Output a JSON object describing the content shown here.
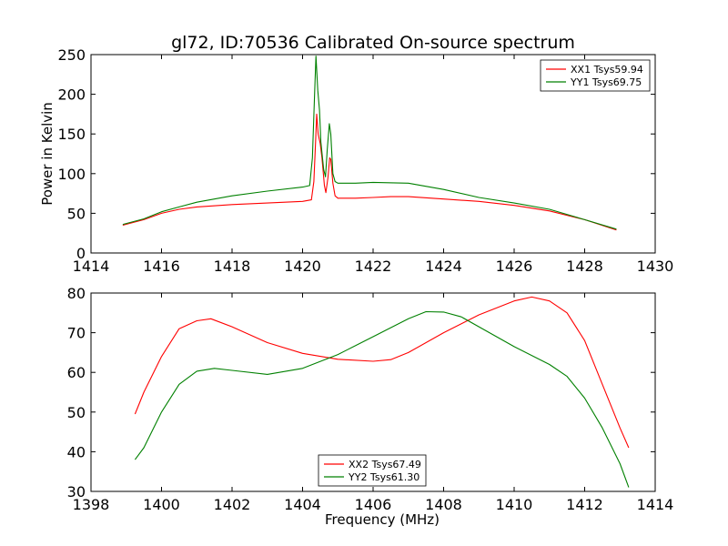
{
  "chart_data": [
    {
      "type": "line",
      "title": "gl72, ID:70536 Calibrated On-source spectrum",
      "xlabel": "",
      "ylabel": "Power in Kelvin",
      "xlim": [
        1414,
        1430
      ],
      "ylim": [
        0,
        250
      ],
      "xticks": [
        1414,
        1416,
        1418,
        1420,
        1422,
        1424,
        1426,
        1428,
        1430
      ],
      "yticks": [
        0,
        50,
        100,
        150,
        200,
        250
      ],
      "grid": false,
      "legend_position": "top-right",
      "series": [
        {
          "name": "XX1 Tsys59.94",
          "color": "#ff0000",
          "points": [
            [
              1414.9,
              35
            ],
            [
              1415.5,
              42
            ],
            [
              1416.0,
              50
            ],
            [
              1416.5,
              55
            ],
            [
              1417.0,
              58
            ],
            [
              1418.0,
              61
            ],
            [
              1419.0,
              63
            ],
            [
              1420.0,
              65
            ],
            [
              1420.25,
              67
            ],
            [
              1420.32,
              90
            ],
            [
              1420.37,
              140
            ],
            [
              1420.4,
              175
            ],
            [
              1420.44,
              150
            ],
            [
              1420.5,
              138
            ],
            [
              1420.55,
              120
            ],
            [
              1420.62,
              85
            ],
            [
              1420.66,
              76
            ],
            [
              1420.72,
              95
            ],
            [
              1420.77,
              120
            ],
            [
              1420.8,
              118
            ],
            [
              1420.86,
              88
            ],
            [
              1420.92,
              72
            ],
            [
              1421.0,
              69
            ],
            [
              1421.5,
              69
            ],
            [
              1422.0,
              70
            ],
            [
              1422.5,
              71
            ],
            [
              1423.0,
              71
            ],
            [
              1424.0,
              68
            ],
            [
              1425.0,
              65
            ],
            [
              1426.0,
              60
            ],
            [
              1427.0,
              53
            ],
            [
              1428.0,
              42
            ],
            [
              1428.9,
              29
            ]
          ]
        },
        {
          "name": "YY1 Tsys69.75",
          "color": "#008000",
          "points": [
            [
              1414.9,
              36
            ],
            [
              1415.5,
              43
            ],
            [
              1416.0,
              52
            ],
            [
              1416.5,
              58
            ],
            [
              1417.0,
              64
            ],
            [
              1418.0,
              72
            ],
            [
              1419.0,
              78
            ],
            [
              1420.0,
              83
            ],
            [
              1420.2,
              85
            ],
            [
              1420.28,
              120
            ],
            [
              1420.34,
              200
            ],
            [
              1420.38,
              248
            ],
            [
              1420.43,
              205
            ],
            [
              1420.48,
              180
            ],
            [
              1420.52,
              140
            ],
            [
              1420.6,
              105
            ],
            [
              1420.65,
              96
            ],
            [
              1420.7,
              130
            ],
            [
              1420.76,
              163
            ],
            [
              1420.8,
              150
            ],
            [
              1420.86,
              100
            ],
            [
              1420.92,
              90
            ],
            [
              1421.0,
              88
            ],
            [
              1421.5,
              88
            ],
            [
              1422.0,
              89
            ],
            [
              1423.0,
              88
            ],
            [
              1424.0,
              80
            ],
            [
              1425.0,
              70
            ],
            [
              1426.0,
              63
            ],
            [
              1427.0,
              55
            ],
            [
              1428.0,
              42
            ],
            [
              1428.9,
              30
            ]
          ]
        }
      ]
    },
    {
      "type": "line",
      "title": "",
      "xlabel": "Frequency (MHz)",
      "ylabel": "",
      "xlim": [
        1398,
        1414
      ],
      "ylim": [
        30,
        80
      ],
      "xticks": [
        1398,
        1400,
        1402,
        1404,
        1406,
        1408,
        1410,
        1412,
        1414
      ],
      "yticks": [
        30,
        40,
        50,
        60,
        70,
        80
      ],
      "grid": false,
      "legend_position": "bottom-center",
      "series": [
        {
          "name": "XX2 Tsys67.49",
          "color": "#ff0000",
          "points": [
            [
              1399.25,
              49.5
            ],
            [
              1399.5,
              55
            ],
            [
              1400.0,
              64
            ],
            [
              1400.5,
              71
            ],
            [
              1401.0,
              73
            ],
            [
              1401.4,
              73.5
            ],
            [
              1402.0,
              71.5
            ],
            [
              1403.0,
              67.5
            ],
            [
              1404.0,
              64.8
            ],
            [
              1405.0,
              63.3
            ],
            [
              1406.0,
              62.8
            ],
            [
              1406.5,
              63.2
            ],
            [
              1407.0,
              65
            ],
            [
              1408.0,
              70
            ],
            [
              1409.0,
              74.5
            ],
            [
              1410.0,
              78
            ],
            [
              1410.5,
              79
            ],
            [
              1411.0,
              78
            ],
            [
              1411.5,
              75
            ],
            [
              1412.0,
              68
            ],
            [
              1412.5,
              57
            ],
            [
              1413.0,
              46
            ],
            [
              1413.25,
              41
            ]
          ]
        },
        {
          "name": "YY2 Tsys61.30",
          "color": "#008000",
          "points": [
            [
              1399.25,
              38
            ],
            [
              1399.5,
              41
            ],
            [
              1400.0,
              50
            ],
            [
              1400.5,
              57
            ],
            [
              1401.0,
              60.3
            ],
            [
              1401.5,
              61
            ],
            [
              1402.0,
              60.5
            ],
            [
              1403.0,
              59.5
            ],
            [
              1404.0,
              61
            ],
            [
              1405.0,
              64.5
            ],
            [
              1406.0,
              69
            ],
            [
              1407.0,
              73.5
            ],
            [
              1407.5,
              75.3
            ],
            [
              1408.0,
              75.2
            ],
            [
              1408.5,
              74
            ],
            [
              1409.0,
              71.5
            ],
            [
              1410.0,
              66.5
            ],
            [
              1411.0,
              62
            ],
            [
              1411.5,
              59
            ],
            [
              1412.0,
              53.5
            ],
            [
              1412.5,
              46
            ],
            [
              1413.0,
              37
            ],
            [
              1413.25,
              31
            ]
          ]
        }
      ]
    }
  ]
}
